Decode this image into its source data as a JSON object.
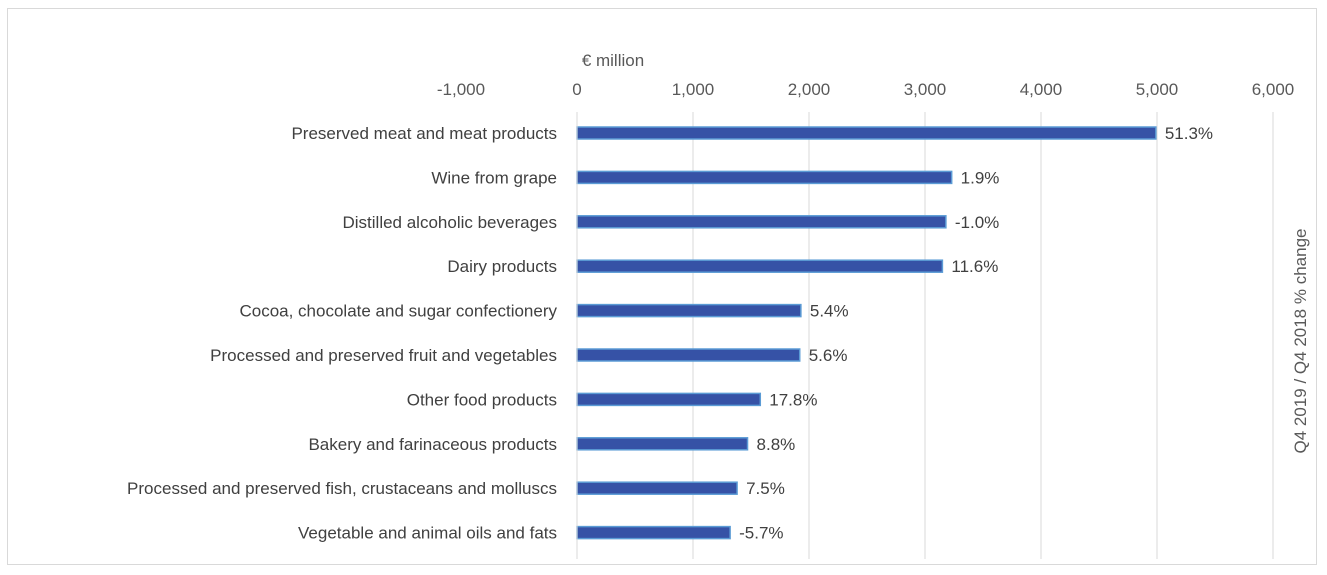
{
  "chart_data": {
    "type": "bar",
    "orientation": "horizontal",
    "xlabel": "€ million",
    "y2label": "Q4 2019 / Q4 2018 % change",
    "xlim": [
      -1000,
      6000
    ],
    "xticks": [
      -1000,
      0,
      1000,
      2000,
      3000,
      4000,
      5000,
      6000
    ],
    "xtick_labels": [
      "-1,000",
      "0",
      "1,000",
      "2,000",
      "3,000",
      "4,000",
      "5,000",
      "6,000"
    ],
    "x_axis_position": "top",
    "grid": true,
    "legend": "none",
    "bar_color": "#3652A6",
    "bar_edge_color": "#5B9BD5",
    "categories": [
      "Preserved meat and meat products",
      "Wine from grape",
      "Distilled alcoholic beverages",
      "Dairy products",
      "Cocoa, chocolate and sugar confectionery",
      "Processed and preserved fruit and vegetables",
      "Other food products",
      "Bakery and farinaceous products",
      "Processed and preserved fish, crustaceans and molluscs",
      "Vegetable and animal oils and fats"
    ],
    "values": [
      4990,
      3230,
      3180,
      3150,
      1930,
      1920,
      1580,
      1470,
      1380,
      1320
    ],
    "data_labels": [
      "51.3%",
      "1.9%",
      "-1.0%",
      "11.6%",
      "5.4%",
      "5.6%",
      "17.8%",
      "8.8%",
      "7.5%",
      "-5.7%"
    ]
  }
}
